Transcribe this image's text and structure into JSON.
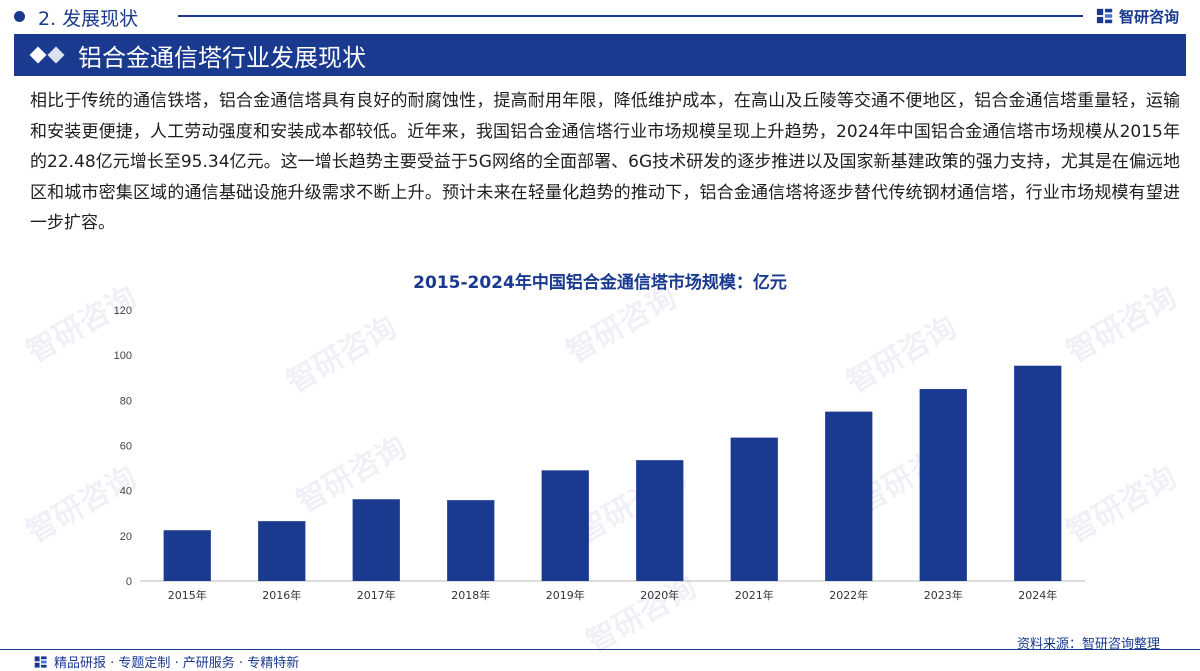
{
  "header": {
    "section": "2. 发展现状",
    "brand": "智研咨询"
  },
  "banner": {
    "title": "铝合金通信塔行业发展现状"
  },
  "paragraph": "相比于传统的通信铁塔，铝合金通信塔具有良好的耐腐蚀性，提高耐用年限，降低维护成本，在高山及丘陵等交通不便地区，铝合金通信塔重量轻，运输和安装更便捷，人工劳动强度和安装成本都较低。近年来，我国铝合金通信塔行业市场规模呈现上升趋势，2024年中国铝合金通信塔市场规模从2015年的22.48亿元增长至95.34亿元。这一增长趋势主要受益于5G网络的全面部署、6G技术研发的逐步推进以及国家新基建政策的强力支持，尤其是在偏远地区和城市密集区域的通信基础设施升级需求不断上升。预计未来在轻量化趋势的推动下，铝合金通信塔将逐步替代传统钢材通信塔，行业市场规模有望进一步扩容。",
  "chart_data": {
    "type": "bar",
    "title": "2015-2024年中国铝合金通信塔市场规模：亿元",
    "categories": [
      "2015年",
      "2016年",
      "2017年",
      "2018年",
      "2019年",
      "2020年",
      "2021年",
      "2022年",
      "2023年",
      "2024年"
    ],
    "values": [
      22.48,
      26.5,
      36.2,
      35.8,
      49.0,
      53.5,
      63.5,
      75.0,
      85.0,
      95.34
    ],
    "ylim": [
      0,
      120
    ],
    "yticks": [
      0,
      20,
      40,
      60,
      80,
      100,
      120
    ],
    "xlabel": "",
    "ylabel": "",
    "grid": false,
    "bar_color": "#1a3a8f"
  },
  "footer": {
    "tags": "精品研报 · 专题定制 · 产研服务 · 专精特新",
    "source": "资料来源：智研咨询整理"
  },
  "watermark": "智研咨询"
}
